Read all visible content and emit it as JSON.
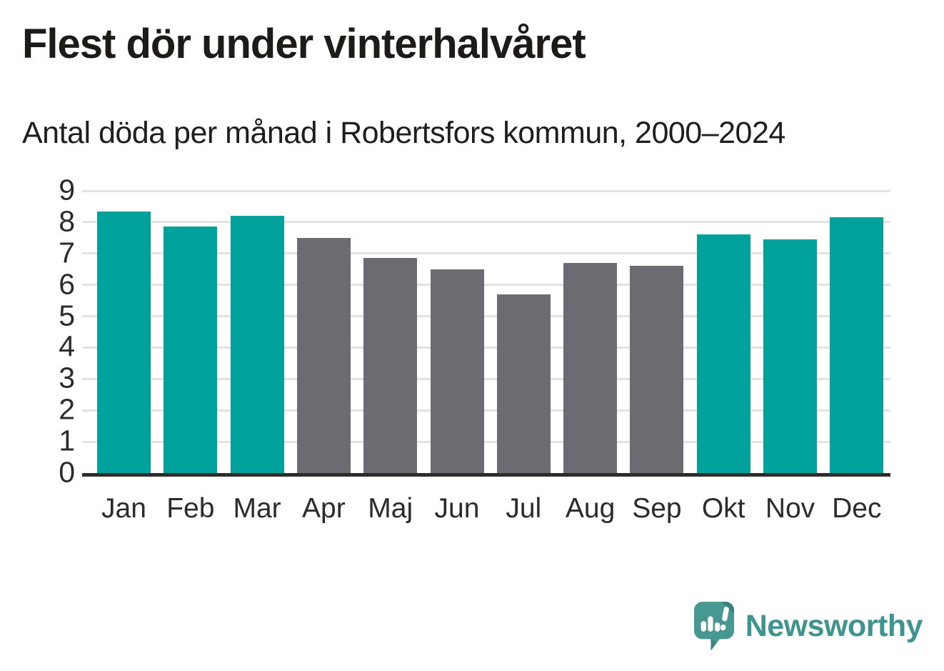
{
  "title": "Flest dör under vinterhalvåret",
  "subtitle": "Antal döda per månad i Robertsfors kommun, 2000–2024",
  "chart_data": {
    "type": "bar",
    "categories": [
      "Jan",
      "Feb",
      "Mar",
      "Apr",
      "Maj",
      "Jun",
      "Jul",
      "Aug",
      "Sep",
      "Okt",
      "Nov",
      "Dec"
    ],
    "values": [
      8.35,
      7.85,
      8.2,
      7.5,
      6.85,
      6.5,
      5.7,
      6.7,
      6.6,
      7.6,
      7.45,
      8.15
    ],
    "bar_groups": [
      "winter",
      "winter",
      "winter",
      "summer",
      "summer",
      "summer",
      "summer",
      "summer",
      "summer",
      "winter",
      "winter",
      "winter"
    ],
    "colors": {
      "winter": "#00a29b",
      "summer": "#6b6b71"
    },
    "title": "Flest dör under vinterhalvåret",
    "subtitle": "Antal döda per månad i Robertsfors kommun, 2000–2024",
    "xlabel": "",
    "ylabel": "",
    "ylim": [
      0,
      9
    ],
    "yticks": [
      0,
      1,
      2,
      3,
      4,
      5,
      6,
      7,
      8,
      9
    ],
    "grid": "horizontal-on",
    "legend": "none",
    "gridline_color": "#e3e3e3",
    "axis_color": "#2d2d2d"
  },
  "branding": {
    "logo_text": "Newsworthy",
    "logo_color": "#3e948e",
    "logo_icon": "newsworthy-speech-bubble-chart-icon"
  }
}
